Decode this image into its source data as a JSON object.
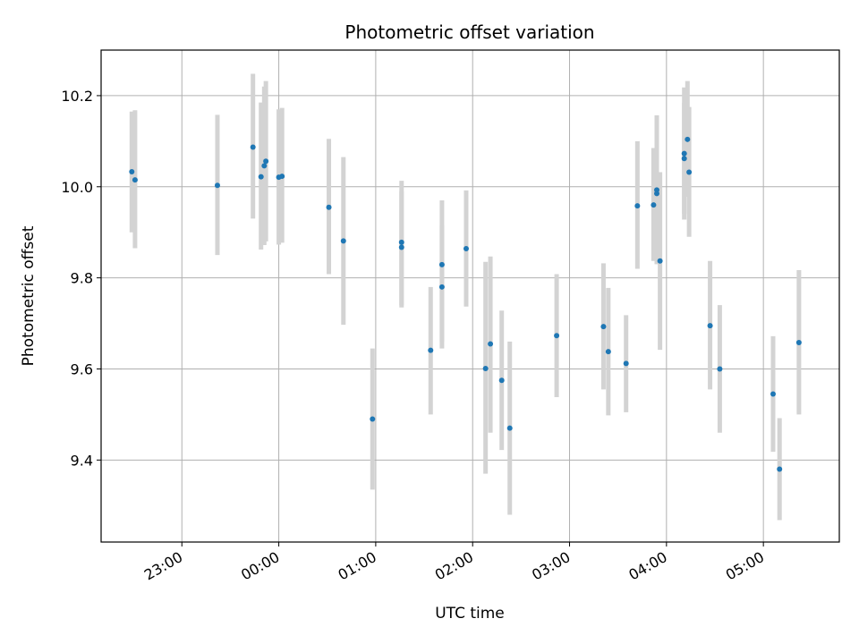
{
  "chart_data": {
    "type": "scatter",
    "title": "Photometric offset variation",
    "xlabel": "UTC time",
    "ylabel": "Photometric offset",
    "x_axis_type": "time",
    "x_range": [
      "22:10",
      "05:47"
    ],
    "xticks": [
      "23:00",
      "00:00",
      "01:00",
      "02:00",
      "03:00",
      "04:00",
      "05:00"
    ],
    "ylim": [
      9.22,
      10.3
    ],
    "yticks": [
      "9.4",
      "9.6",
      "9.8",
      "10.0",
      "10.2"
    ],
    "grid": true,
    "point_color": "#1f77b4",
    "errorbar_color": "#d3d3d3",
    "points": [
      {
        "t": "22:29",
        "y": 10.033,
        "lo": 9.9,
        "hi": 10.165
      },
      {
        "t": "22:31",
        "y": 10.015,
        "lo": 9.865,
        "hi": 10.168
      },
      {
        "t": "23:22",
        "y": 10.003,
        "lo": 9.85,
        "hi": 10.158
      },
      {
        "t": "23:44",
        "y": 10.087,
        "lo": 9.93,
        "hi": 10.248
      },
      {
        "t": "23:49",
        "y": 10.022,
        "lo": 9.862,
        "hi": 10.185
      },
      {
        "t": "23:51",
        "y": 10.046,
        "lo": 9.872,
        "hi": 10.22
      },
      {
        "t": "23:52",
        "y": 10.056,
        "lo": 9.88,
        "hi": 10.232
      },
      {
        "t": "00:00",
        "y": 10.021,
        "lo": 9.873,
        "hi": 10.17
      },
      {
        "t": "00:02",
        "y": 10.023,
        "lo": 9.877,
        "hi": 10.173
      },
      {
        "t": "00:31",
        "y": 9.955,
        "lo": 9.808,
        "hi": 10.105
      },
      {
        "t": "00:40",
        "y": 9.881,
        "lo": 9.697,
        "hi": 10.065
      },
      {
        "t": "00:58",
        "y": 9.49,
        "lo": 9.335,
        "hi": 9.645
      },
      {
        "t": "01:16",
        "y": 9.878,
        "lo": 9.735,
        "hi": 10.013
      },
      {
        "t": "01:16",
        "y": 9.867,
        "lo": 9.74,
        "hi": 9.99
      },
      {
        "t": "01:34",
        "y": 9.641,
        "lo": 9.5,
        "hi": 9.78
      },
      {
        "t": "01:41",
        "y": 9.829,
        "lo": 9.645,
        "hi": 9.97
      },
      {
        "t": "01:41",
        "y": 9.78,
        "lo": 9.66,
        "hi": 9.915
      },
      {
        "t": "01:56",
        "y": 9.864,
        "lo": 9.737,
        "hi": 9.992
      },
      {
        "t": "02:08",
        "y": 9.601,
        "lo": 9.37,
        "hi": 9.835
      },
      {
        "t": "02:11",
        "y": 9.655,
        "lo": 9.46,
        "hi": 9.847
      },
      {
        "t": "02:18",
        "y": 9.575,
        "lo": 9.422,
        "hi": 9.728
      },
      {
        "t": "02:23",
        "y": 9.47,
        "lo": 9.28,
        "hi": 9.66
      },
      {
        "t": "02:52",
        "y": 9.673,
        "lo": 9.538,
        "hi": 9.808
      },
      {
        "t": "03:21",
        "y": 9.693,
        "lo": 9.555,
        "hi": 9.832
      },
      {
        "t": "03:24",
        "y": 9.638,
        "lo": 9.498,
        "hi": 9.778
      },
      {
        "t": "03:35",
        "y": 9.612,
        "lo": 9.505,
        "hi": 9.718
      },
      {
        "t": "03:42",
        "y": 9.958,
        "lo": 9.82,
        "hi": 10.1
      },
      {
        "t": "03:52",
        "y": 9.96,
        "lo": 9.837,
        "hi": 10.085
      },
      {
        "t": "03:54",
        "y": 9.985,
        "lo": 9.845,
        "hi": 10.125
      },
      {
        "t": "03:54",
        "y": 9.993,
        "lo": 9.83,
        "hi": 10.157
      },
      {
        "t": "03:56",
        "y": 9.837,
        "lo": 9.642,
        "hi": 10.032
      },
      {
        "t": "04:11",
        "y": 10.073,
        "lo": 9.928,
        "hi": 10.218
      },
      {
        "t": "04:11",
        "y": 10.062,
        "lo": 9.94,
        "hi": 10.185
      },
      {
        "t": "04:13",
        "y": 10.104,
        "lo": 9.978,
        "hi": 10.232
      },
      {
        "t": "04:14",
        "y": 10.032,
        "lo": 9.89,
        "hi": 10.175
      },
      {
        "t": "04:27",
        "y": 9.695,
        "lo": 9.555,
        "hi": 9.837
      },
      {
        "t": "04:33",
        "y": 9.6,
        "lo": 9.46,
        "hi": 9.74
      },
      {
        "t": "05:06",
        "y": 9.545,
        "lo": 9.418,
        "hi": 9.672
      },
      {
        "t": "05:10",
        "y": 9.38,
        "lo": 9.268,
        "hi": 9.492
      },
      {
        "t": "05:22",
        "y": 9.658,
        "lo": 9.5,
        "hi": 9.817
      }
    ]
  }
}
